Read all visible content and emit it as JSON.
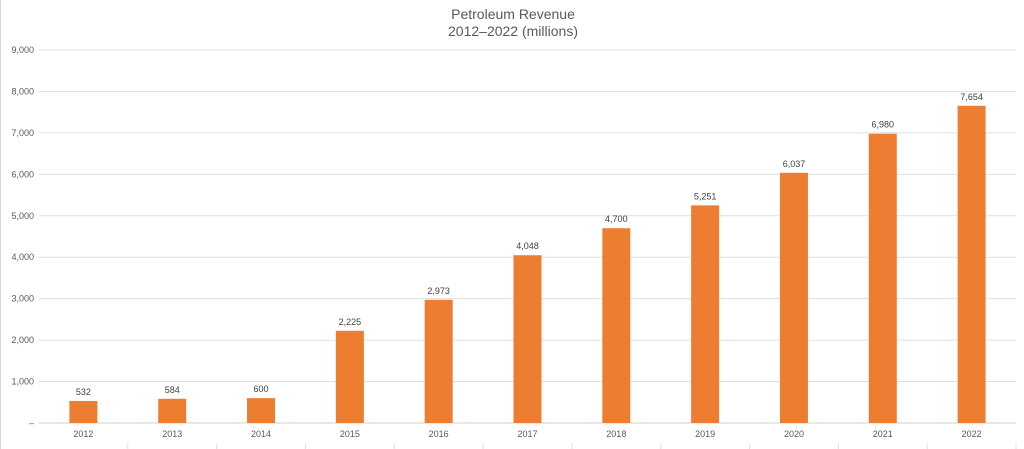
{
  "chart_data": {
    "type": "bar",
    "title_lines": [
      "Petroleum Revenue",
      "2012–2022 (millions)"
    ],
    "categories": [
      "2012",
      "2013",
      "2014",
      "2015",
      "2016",
      "2017",
      "2018",
      "2019",
      "2020",
      "2021",
      "2022"
    ],
    "values": [
      532,
      584,
      600,
      2225,
      2973,
      4048,
      4700,
      5251,
      6037,
      6980,
      7654
    ],
    "data_labels": [
      "532",
      "584",
      "600",
      "2,225",
      "2,973",
      "4,048",
      "4,700",
      "5,251",
      "6,037",
      "6,980",
      "7,654"
    ],
    "ylim": [
      0,
      9000
    ],
    "y_ticks": [
      0,
      1000,
      2000,
      3000,
      4000,
      5000,
      6000,
      7000,
      8000,
      9000
    ],
    "y_tick_labels": [
      "–",
      "1,000",
      "2,000",
      "3,000",
      "4,000",
      "5,000",
      "6,000",
      "7,000",
      "8,000",
      "9,000"
    ],
    "grid": true,
    "legend": "none",
    "bar_color": "#ED7D31"
  }
}
